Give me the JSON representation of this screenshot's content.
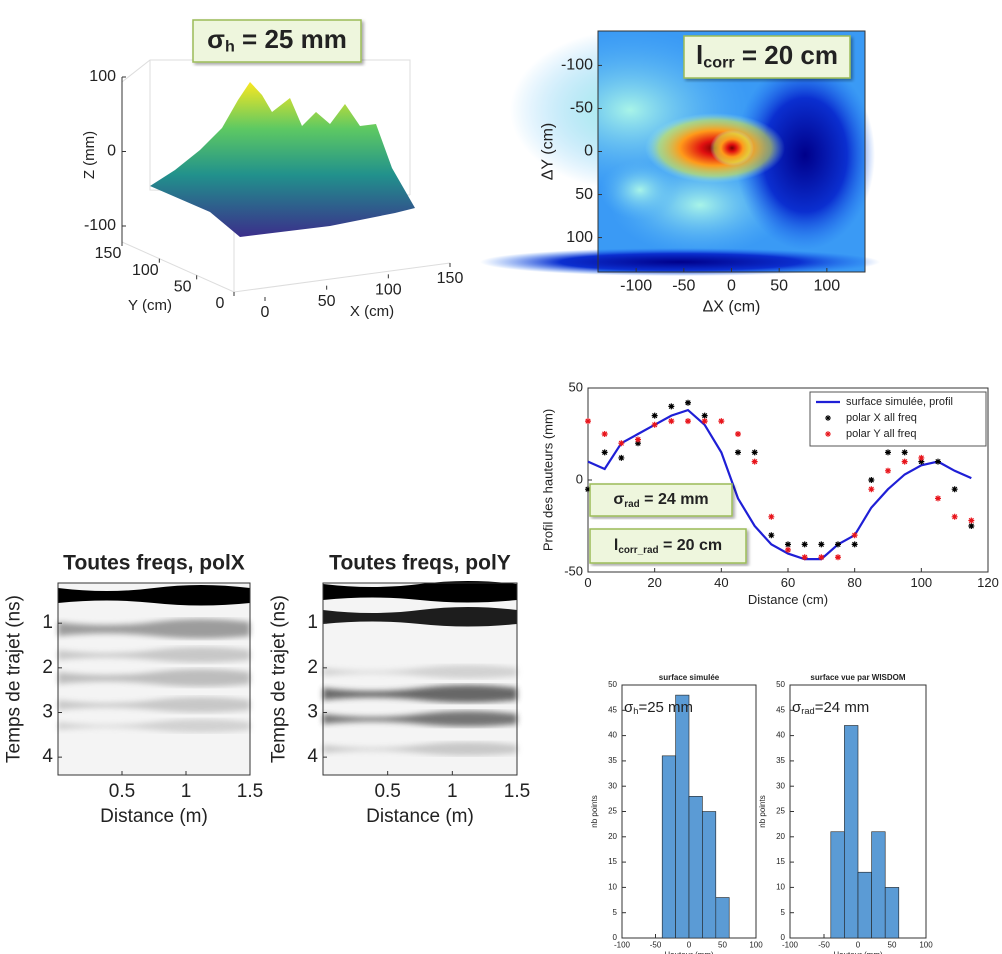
{
  "chart_data": [
    {
      "type": "surface3d",
      "annotation": {
        "base": "σ",
        "sub": "h",
        "text": " = 25 mm"
      },
      "xlabel": "X (cm)",
      "ylabel": "Y (cm)",
      "zlabel": "Z (mm)",
      "xlim": [
        0,
        150
      ],
      "ylim": [
        0,
        150
      ],
      "zlim": [
        -100,
        100
      ],
      "xticks": [
        0,
        50,
        100,
        150
      ],
      "yticks": [
        0,
        50,
        100,
        150
      ],
      "zticks": [
        -100,
        0,
        100
      ]
    },
    {
      "type": "heatmap",
      "annotation": {
        "base": "l",
        "sub": "corr",
        "text": " = 20 cm"
      },
      "xlabel": "ΔX (cm)",
      "ylabel": "ΔY (cm)",
      "xlim": [
        -140,
        140
      ],
      "ylim": [
        140,
        -140
      ],
      "xticks": [
        -100,
        -50,
        0,
        50,
        100
      ],
      "yticks": [
        -100,
        -50,
        0,
        50,
        100
      ]
    },
    {
      "type": "radargram",
      "title": "Toutes freqs, polX",
      "xlabel": "Distance (m)",
      "ylabel": "Temps de trajet (ns)",
      "xlim": [
        0,
        1.5
      ],
      "ylim": [
        4.4,
        0.1
      ],
      "xticks": [
        0.5,
        1,
        1.5
      ],
      "yticks": [
        1,
        2,
        3,
        4
      ]
    },
    {
      "type": "radargram",
      "title": "Toutes freqs, polY",
      "xlabel": "Distance (m)",
      "ylabel": "Temps de trajet (ns)",
      "xlim": [
        0,
        1.5
      ],
      "ylim": [
        4.4,
        0.1
      ],
      "xticks": [
        0.5,
        1,
        1.5
      ],
      "yticks": [
        1,
        2,
        3,
        4
      ]
    },
    {
      "type": "line",
      "xlabel": "Distance (cm)",
      "ylabel": "Profil des hauteurs (mm)",
      "xlim": [
        0,
        120
      ],
      "ylim": [
        -50,
        50
      ],
      "xticks": [
        0,
        20,
        40,
        60,
        80,
        100,
        120
      ],
      "yticks": [
        -50,
        0,
        50
      ],
      "legend": "upper right",
      "annotations": [
        {
          "base": "σ",
          "sub": "rad",
          "text": " = 24 mm"
        },
        {
          "base": "l",
          "sub": "corr_rad",
          "text": " = 20 cm"
        }
      ],
      "x": [
        0,
        5,
        10,
        15,
        20,
        25,
        30,
        35,
        40,
        45,
        50,
        55,
        60,
        65,
        70,
        75,
        80,
        85,
        90,
        95,
        100,
        105,
        110,
        115
      ],
      "series": [
        {
          "name": "surface simulée, profil",
          "style": "line",
          "color": "#1f1fd6",
          "values": [
            10,
            6,
            20,
            25,
            30,
            35,
            38,
            30,
            15,
            -10,
            -25,
            -35,
            -40,
            -43,
            -43,
            -35,
            -30,
            -15,
            -5,
            3,
            8,
            10,
            5,
            1
          ]
        },
        {
          "name": "polar X all freq",
          "style": "marker",
          "color": "#000000",
          "values": [
            -5,
            15,
            12,
            20,
            35,
            40,
            42,
            35,
            -10,
            15,
            15,
            -30,
            -35,
            -35,
            -35,
            -35,
            -35,
            0,
            15,
            15,
            10,
            10,
            -5,
            -25
          ]
        },
        {
          "name": "polar Y all freq",
          "style": "marker",
          "color": "#e8141b",
          "values": [
            32,
            25,
            20,
            22,
            30,
            32,
            32,
            32,
            32,
            25,
            10,
            -20,
            -38,
            -42,
            -42,
            -42,
            -30,
            -5,
            5,
            10,
            12,
            -10,
            -20,
            -22
          ]
        }
      ]
    },
    {
      "type": "histogram",
      "title": "surface simulée",
      "xlabel": "Hauteur (mm)",
      "ylabel": "nb points",
      "annotation": {
        "base": "σ",
        "sub": "h",
        "text": "=25 mm"
      },
      "color": "#5b9bd5",
      "xlim": [
        -100,
        100
      ],
      "ylim": [
        0,
        50
      ],
      "xticks": [
        -100,
        -50,
        0,
        50,
        100
      ],
      "yticks": [
        0,
        5,
        10,
        15,
        20,
        25,
        30,
        35,
        40,
        45,
        50
      ],
      "bins": [
        -40,
        -20,
        0,
        20,
        40,
        60
      ],
      "values": [
        36,
        48,
        28,
        25,
        8
      ]
    },
    {
      "type": "histogram",
      "title": "surface vue par WISDOM",
      "xlabel": "Hauteur (mm)",
      "ylabel": "nb points",
      "annotation": {
        "base": "σ",
        "sub": "rad",
        "text": "=24 mm"
      },
      "color": "#5b9bd5",
      "xlim": [
        -100,
        100
      ],
      "ylim": [
        0,
        50
      ],
      "xticks": [
        -100,
        -50,
        0,
        50,
        100
      ],
      "yticks": [
        0,
        5,
        10,
        15,
        20,
        25,
        30,
        35,
        40,
        45,
        50
      ],
      "bins": [
        -40,
        -20,
        0,
        20,
        40,
        60
      ],
      "values": [
        21,
        42,
        13,
        21,
        10
      ]
    }
  ]
}
